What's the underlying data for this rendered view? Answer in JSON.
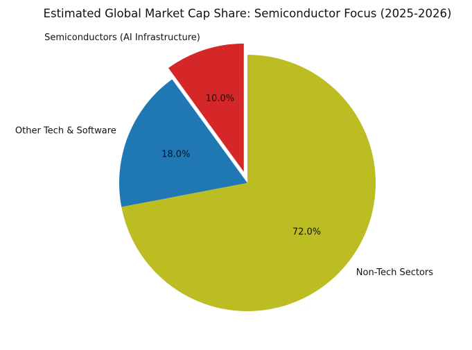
{
  "chart_data": {
    "type": "pie",
    "title": "Estimated Global Market Cap Share: Semiconductor Focus (2025-2026)",
    "slices": [
      {
        "label": "Semiconductors (AI Infrastructure)",
        "value": 10.0,
        "pct_label": "10.0%",
        "color": "#d62728",
        "exploded": true
      },
      {
        "label": "Other Tech & Software",
        "value": 18.0,
        "pct_label": "18.0%",
        "color": "#1f77b4",
        "exploded": false
      },
      {
        "label": "Non-Tech Sectors",
        "value": 72.0,
        "pct_label": "72.0%",
        "color": "#bcbd22",
        "exploded": false
      }
    ],
    "start_angle_deg": 90,
    "direction": "counterclockwise",
    "legend": "none"
  }
}
